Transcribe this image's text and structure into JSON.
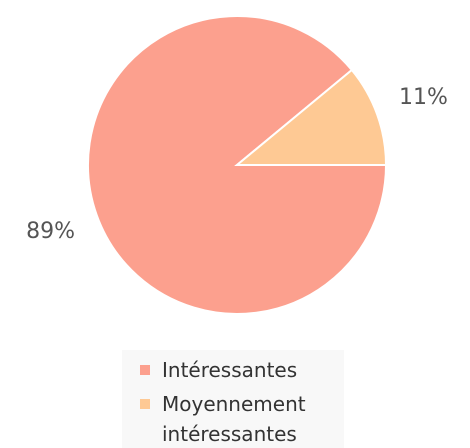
{
  "chart_data": {
    "type": "pie",
    "categories": [
      "Intéressantes",
      "Moyennement intéressantes"
    ],
    "values": [
      89,
      11
    ],
    "value_labels": [
      "89%",
      "11%"
    ],
    "colors": [
      "#fca08e",
      "#fec994"
    ],
    "legend": "bottom"
  }
}
